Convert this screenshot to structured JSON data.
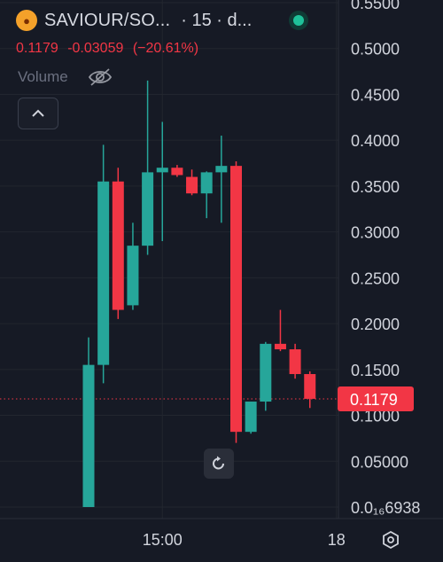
{
  "header": {
    "symbol": "SAVIOUR/SO...",
    "interval": "· 15 · d...",
    "last_price": "0.1179",
    "change": "-0.03059",
    "change_pct": "(−20.61%)",
    "volume_label": "Volume"
  },
  "icons": {
    "coin": "coin-logo-icon",
    "status": "live-status-dot-icon",
    "eye": "eye-off-icon",
    "collapse": "chevron-up-icon",
    "reset": "rotate-reset-icon",
    "settings": "settings-hex-icon"
  },
  "colors": {
    "background": "#161a25",
    "up": "#26a69a",
    "down": "#f23645",
    "grid": "#22262f",
    "axis_text": "#d1d4dc"
  },
  "chart_data": {
    "type": "candlestick",
    "title": "",
    "xlabel": "",
    "ylabel": "",
    "ylim": [
      0,
      0.55
    ],
    "y_ticks": [
      "0.5500",
      "0.5000",
      "0.4500",
      "0.4000",
      "0.3500",
      "0.3000",
      "0.2500",
      "0.2000",
      "0.1500",
      "0.1000",
      "0.05000",
      "0.0₁₆6938"
    ],
    "y_tick_values": [
      0.55,
      0.5,
      0.45,
      0.4,
      0.35,
      0.3,
      0.25,
      0.2,
      0.15,
      0.1,
      0.05,
      0.0
    ],
    "x_ticks": [
      {
        "label": "15:00",
        "index": 5
      },
      {
        "label": "18",
        "index": 16.8
      }
    ],
    "last_price_line": 0.1179,
    "last_price_label": "0.1179",
    "candles": [
      {
        "open": 0.0,
        "high": 0.185,
        "low": 0.0,
        "close": 0.155
      },
      {
        "open": 0.155,
        "high": 0.395,
        "low": 0.135,
        "close": 0.355
      },
      {
        "open": 0.355,
        "high": 0.37,
        "low": 0.205,
        "close": 0.215
      },
      {
        "open": 0.22,
        "high": 0.31,
        "low": 0.215,
        "close": 0.285
      },
      {
        "open": 0.285,
        "high": 0.465,
        "low": 0.275,
        "close": 0.365
      },
      {
        "open": 0.365,
        "high": 0.42,
        "low": 0.29,
        "close": 0.37
      },
      {
        "open": 0.37,
        "high": 0.373,
        "low": 0.36,
        "close": 0.362
      },
      {
        "open": 0.36,
        "high": 0.368,
        "low": 0.34,
        "close": 0.342
      },
      {
        "open": 0.342,
        "high": 0.366,
        "low": 0.315,
        "close": 0.365
      },
      {
        "open": 0.365,
        "high": 0.405,
        "low": 0.31,
        "close": 0.372
      },
      {
        "open": 0.372,
        "high": 0.377,
        "low": 0.07,
        "close": 0.082
      },
      {
        "open": 0.082,
        "high": 0.115,
        "low": 0.08,
        "close": 0.115
      },
      {
        "open": 0.115,
        "high": 0.18,
        "low": 0.105,
        "close": 0.178
      },
      {
        "open": 0.178,
        "high": 0.215,
        "low": 0.17,
        "close": 0.172
      },
      {
        "open": 0.172,
        "high": 0.178,
        "low": 0.14,
        "close": 0.145
      },
      {
        "open": 0.145,
        "high": 0.148,
        "low": 0.108,
        "close": 0.118
      }
    ]
  }
}
